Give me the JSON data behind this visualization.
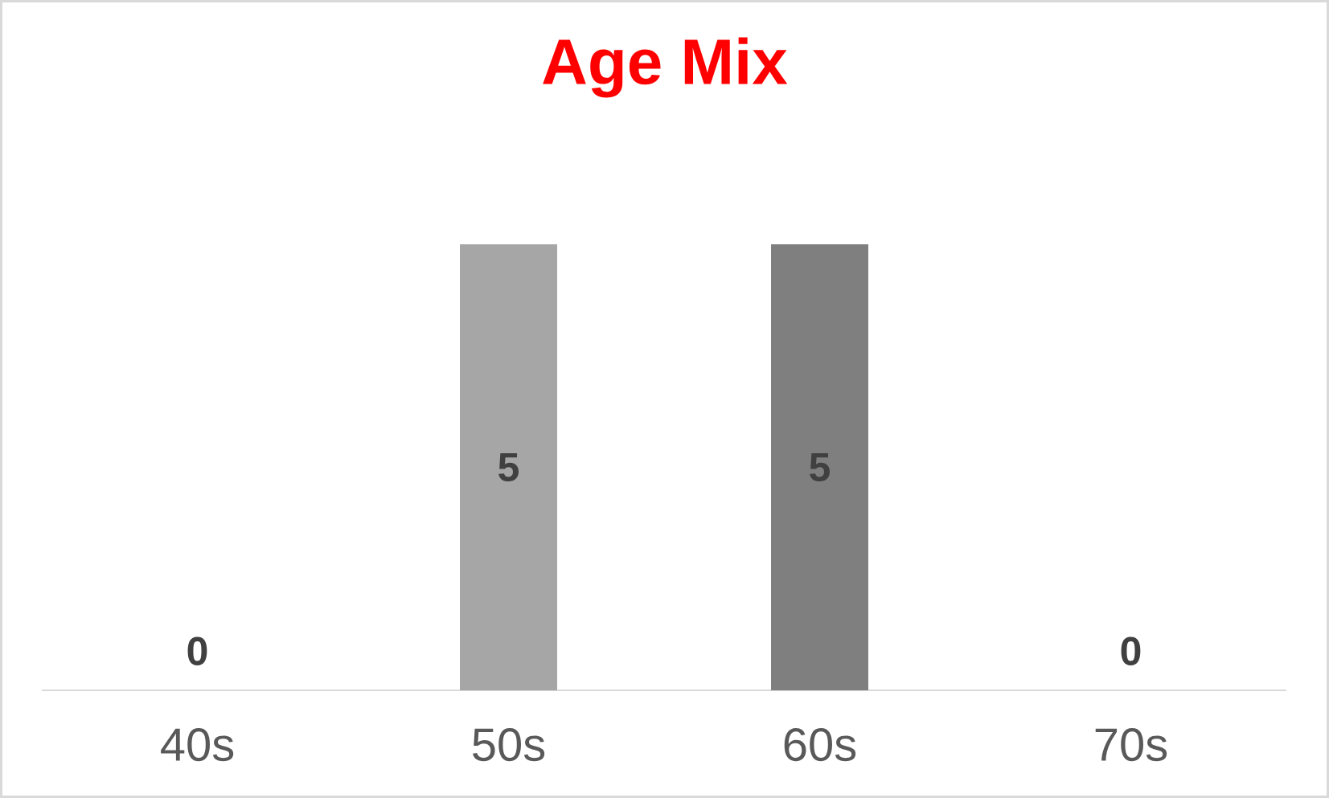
{
  "chart_data": {
    "type": "bar",
    "title": "Age Mix",
    "categories": [
      "40s",
      "50s",
      "60s",
      "70s"
    ],
    "values": [
      0,
      5,
      5,
      0
    ],
    "colors": [
      "#c9c9c9",
      "#a6a6a6",
      "#7f7f7f",
      "#595959"
    ],
    "data_labels": true
  }
}
